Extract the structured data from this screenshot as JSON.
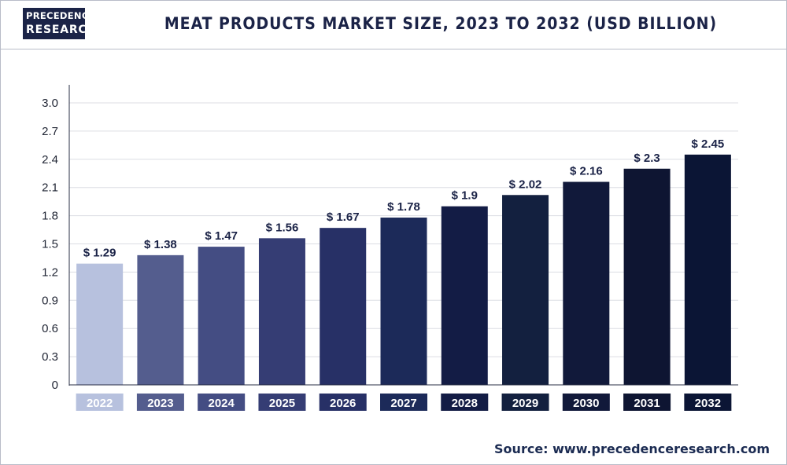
{
  "header": {
    "logo_line1": "PRECEDENCE",
    "logo_line2": "RESEARCH",
    "title": "MEAT PRODUCTS MARKET SIZE, 2023 TO 2032 (USD BILLION)"
  },
  "footer": {
    "source": "Source: www.precedenceresearch.com"
  },
  "chart_data": {
    "type": "bar",
    "title": "MEAT PRODUCTS MARKET SIZE, 2023 TO 2032 (USD BILLION)",
    "categories": [
      "2022",
      "2023",
      "2024",
      "2025",
      "2026",
      "2027",
      "2028",
      "2029",
      "2030",
      "2031",
      "2032"
    ],
    "values": [
      1.29,
      1.38,
      1.47,
      1.56,
      1.67,
      1.78,
      1.9,
      2.02,
      2.16,
      2.3,
      2.45
    ],
    "value_labels": [
      "$ 1.29",
      "$ 1.38",
      "$ 1.47",
      "$ 1.56",
      "$ 1.67",
      "$ 1.78",
      "$ 1.9",
      "$ 2.02",
      "$ 2.16",
      "$ 2.3",
      "$ 2.45"
    ],
    "yticks": [
      "0",
      "0.3",
      "0.6",
      "0.9",
      "1.2",
      "1.5",
      "1.8",
      "2.1",
      "2.4",
      "2.7",
      "3.0"
    ],
    "ylim": [
      0,
      3.0
    ],
    "xlabel": "",
    "ylabel": "",
    "grid": true,
    "legend": "none",
    "colors": [
      "#b7c1de",
      "#545d8e",
      "#444d83",
      "#353d74",
      "#273066",
      "#1c2a59",
      "#131c45",
      "#13203f",
      "#11193a",
      "#0e1532",
      "#0b1535"
    ]
  }
}
